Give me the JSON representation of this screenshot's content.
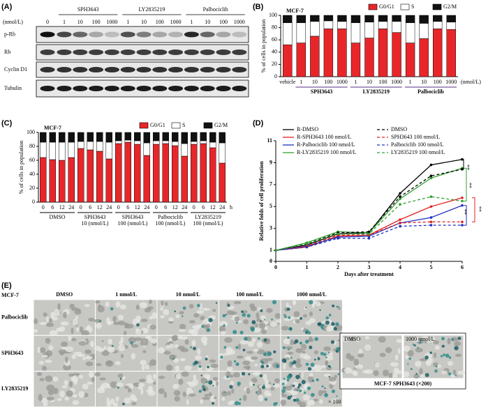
{
  "blot": {
    "label": "(A)",
    "unit": "(nmol/L)",
    "control_dose": "0",
    "groups": [
      "SPH3643",
      "LY2835219",
      "Palbociclib"
    ],
    "doses": [
      "1",
      "10",
      "100",
      "1000"
    ],
    "rows": [
      "p-Rb",
      "Rb",
      "Cyclin D1",
      "Tubulin"
    ]
  },
  "chart_data": [
    {
      "label": "(B)",
      "type": "stacked_bar",
      "title": "MCF-7",
      "ylabel": "% of cells in population",
      "ylim": [
        0,
        100
      ],
      "yticks": [
        0,
        20,
        40,
        60,
        80,
        100
      ],
      "categories": [
        "vehicle",
        "1",
        "10",
        "100",
        "1000",
        "1",
        "10",
        "100",
        "1000",
        "1",
        "10",
        "100",
        "1000"
      ],
      "groups": [
        [
          "SPH3643"
        ],
        [
          "LY2835219"
        ],
        [
          "Palbociclib"
        ]
      ],
      "x_unit": "(nmol/L)",
      "series": [
        {
          "name": "G0/G1",
          "color": "#e8262a",
          "values": [
            52,
            55,
            66,
            78,
            78,
            55,
            63,
            78,
            72,
            55,
            62,
            78,
            77
          ]
        },
        {
          "name": "S",
          "color": "#ffffff",
          "values": [
            36,
            33,
            24,
            13,
            12,
            33,
            26,
            12,
            18,
            33,
            25,
            12,
            12
          ]
        },
        {
          "name": "G2/M",
          "color": "#111111",
          "values": [
            12,
            12,
            10,
            9,
            10,
            12,
            11,
            10,
            10,
            12,
            13,
            10,
            11
          ]
        }
      ]
    },
    {
      "label": "(C)",
      "type": "stacked_bar",
      "title": "MCF-7",
      "ylabel": "% of cells in population",
      "ylim": [
        0,
        100
      ],
      "yticks": [
        0,
        20,
        40,
        60,
        80,
        100
      ],
      "categories": [
        "0",
        "6",
        "12",
        "24",
        "0",
        "6",
        "12",
        "24",
        "0",
        "6",
        "12",
        "24",
        "0",
        "6",
        "12",
        "24",
        "0",
        "6",
        "12",
        "24"
      ],
      "groups": [
        [
          "DMSO"
        ],
        [
          "SPH3643",
          "10 (nmol/L)"
        ],
        [
          "SPH3643",
          "100 (nmol/L)"
        ],
        [
          "Palbociclib",
          "100 (nmol/L)"
        ],
        [
          "LY2835219",
          "100 (nmol/L)"
        ]
      ],
      "x_unit": "h",
      "series": [
        {
          "name": "G0/G1",
          "color": "#e8262a",
          "values": [
            64,
            61,
            60,
            64,
            77,
            75,
            73,
            62,
            84,
            86,
            83,
            67,
            83,
            84,
            81,
            66,
            83,
            84,
            78,
            56
          ]
        },
        {
          "name": "S",
          "color": "#ffffff",
          "values": [
            22,
            25,
            26,
            22,
            10,
            12,
            14,
            24,
            4,
            3,
            5,
            18,
            5,
            4,
            6,
            18,
            4,
            4,
            8,
            29
          ]
        },
        {
          "name": "G2/M",
          "color": "#111111",
          "values": [
            14,
            14,
            14,
            14,
            13,
            13,
            13,
            14,
            12,
            11,
            12,
            15,
            12,
            12,
            13,
            16,
            13,
            12,
            14,
            15
          ]
        }
      ]
    },
    {
      "label": "(D)",
      "type": "line",
      "xlabel": "Days after treatment",
      "ylabel": "Relative folds of cell proliferation",
      "x": [
        0,
        1,
        2,
        3,
        4,
        5,
        6
      ],
      "xlim": [
        0,
        6
      ],
      "xticks": [
        0,
        1,
        2,
        3,
        4,
        5,
        6
      ],
      "ylim": [
        0,
        11
      ],
      "yticks": [
        0,
        1,
        3,
        5,
        7,
        9,
        11
      ],
      "series": [
        {
          "name": "R-DMSO",
          "color": "#000000",
          "dashed": false,
          "values": [
            1,
            1.5,
            2.5,
            2.6,
            6.2,
            8.8,
            9.3
          ]
        },
        {
          "name": "R-SPH3643 100 nmol/L",
          "color": "#e02020",
          "dashed": false,
          "values": [
            1,
            1.3,
            2.3,
            2.4,
            3.8,
            5.0,
            5.8
          ]
        },
        {
          "name": "R-Palbociclib 100 nmol/L",
          "color": "#2030c0",
          "dashed": false,
          "values": [
            1,
            1.4,
            2.2,
            2.3,
            3.5,
            4.0,
            5.1
          ]
        },
        {
          "name": "R-LY2835219 100 nmol/L",
          "color": "#30a030",
          "dashed": false,
          "values": [
            1,
            1.7,
            2.7,
            2.6,
            5.7,
            7.6,
            8.5
          ]
        },
        {
          "name": "DMSO",
          "color": "#000000",
          "dashed": true,
          "values": [
            1,
            1.6,
            2.6,
            2.7,
            5.9,
            7.8,
            8.4
          ]
        },
        {
          "name": "SPH3643 100 nmol/L",
          "color": "#e02020",
          "dashed": true,
          "values": [
            1,
            1.4,
            2.4,
            2.4,
            3.5,
            3.6,
            3.6
          ]
        },
        {
          "name": "Palbociclib 100 nmol/L",
          "color": "#2030c0",
          "dashed": true,
          "values": [
            1,
            1.3,
            2.1,
            2.1,
            3.2,
            3.3,
            3.3
          ]
        },
        {
          "name": "LY2835219 100 nmol/L",
          "color": "#30a030",
          "dashed": true,
          "values": [
            1,
            1.6,
            2.5,
            2.5,
            5.2,
            5.9,
            5.5
          ]
        }
      ],
      "annotations": [
        "**",
        "**",
        "**",
        "**"
      ]
    }
  ],
  "micrographs": {
    "label": "(E)",
    "cell_line": "MCF-7",
    "columns": [
      "DMSO",
      "1 nmol/L",
      "10 nmol/L",
      "100 nmol/L",
      "1000 nmol/L"
    ],
    "rows": [
      "Palbociclib",
      "SPH3643",
      "LY2835219"
    ],
    "magnification": "× 100",
    "inset": {
      "panels": [
        "DMSO",
        "1000 nmol/L"
      ],
      "caption": "MCF-7 SPH3643 (×200)"
    }
  }
}
